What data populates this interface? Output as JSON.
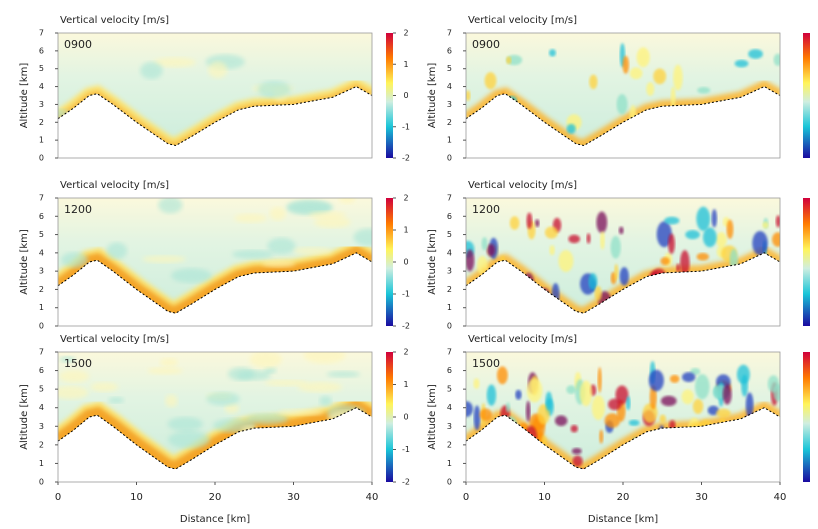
{
  "terrain": {
    "x": [
      0,
      2,
      4,
      5,
      7,
      10,
      12,
      14,
      15,
      17,
      20,
      23,
      25,
      30,
      35,
      38,
      40
    ],
    "altitude": [
      2.2,
      2.8,
      3.5,
      3.6,
      3.0,
      2.0,
      1.4,
      0.8,
      0.7,
      1.2,
      2.0,
      2.7,
      2.9,
      3.0,
      3.4,
      4.0,
      3.5
    ]
  },
  "chart_data": [
    {
      "type": "contour",
      "title": "Vertical velocity [m/s]",
      "time": "0900",
      "ylabel": "Altitude [km]",
      "ylim": [
        0,
        7
      ],
      "yticks": [
        0,
        1,
        2,
        3,
        4,
        5,
        6,
        7
      ],
      "xlim": [
        0,
        40
      ],
      "colorbar": {
        "lim": [
          -2,
          2
        ],
        "ticks": [
          2,
          1,
          0,
          -1,
          -2
        ]
      }
    },
    {
      "type": "contour",
      "title": "Vertical velocity [m/s]",
      "time": "0900",
      "ylabel": "Altitude [km]",
      "ylim": [
        0,
        7
      ],
      "yticks": [
        0,
        1,
        2,
        3,
        4,
        5,
        6,
        7
      ],
      "xlim": [
        0,
        40
      ]
    },
    {
      "type": "contour",
      "title": "Vertical velocity [m/s]",
      "time": "1200",
      "ylabel": "Altitude [km]",
      "ylim": [
        0,
        7
      ],
      "yticks": [
        0,
        1,
        2,
        3,
        4,
        5,
        6,
        7
      ],
      "xlim": [
        0,
        40
      ],
      "colorbar": {
        "lim": [
          -2,
          2
        ],
        "ticks": [
          2,
          1,
          0,
          -1,
          -2
        ]
      }
    },
    {
      "type": "contour",
      "title": "Vertical velocity [m/s]",
      "time": "1200",
      "ylabel": "Altitude [km]",
      "ylim": [
        0,
        7
      ],
      "yticks": [
        0,
        1,
        2,
        3,
        4,
        5,
        6,
        7
      ],
      "xlim": [
        0,
        40
      ]
    },
    {
      "type": "contour",
      "title": "Vertical velocity [m/s]",
      "time": "1500",
      "ylabel": "Altitude [km]",
      "ylim": [
        0,
        7
      ],
      "yticks": [
        0,
        1,
        2,
        3,
        4,
        5,
        6,
        7
      ],
      "xlim": [
        0,
        40
      ],
      "xticks": [
        0,
        10,
        20,
        30,
        40
      ],
      "xlabel": "Distance [km]",
      "colorbar": {
        "lim": [
          -2,
          2
        ],
        "ticks": [
          2,
          1,
          0,
          -1,
          -2
        ]
      }
    },
    {
      "type": "contour",
      "title": "Vertical velocity [m/s]",
      "time": "1500",
      "ylabel": "Altitude [km]",
      "ylim": [
        0,
        7
      ],
      "yticks": [
        0,
        1,
        2,
        3,
        4,
        5,
        6,
        7
      ],
      "xlim": [
        0,
        40
      ],
      "xticks": [
        0,
        10,
        20,
        30,
        40
      ],
      "xlabel": "Distance [km]"
    }
  ]
}
